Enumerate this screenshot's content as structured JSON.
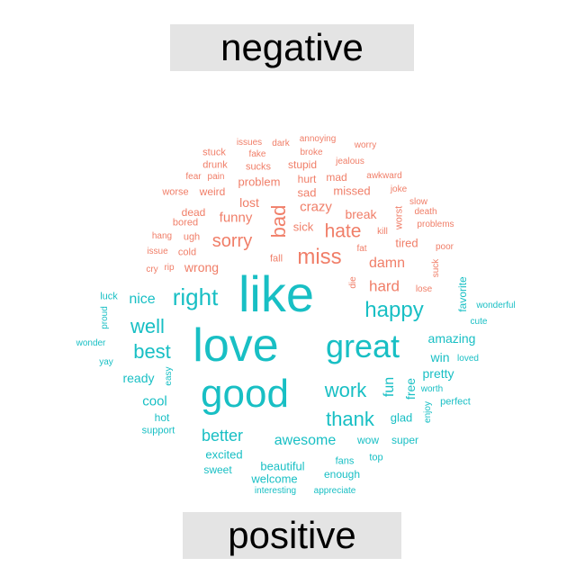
{
  "labels": {
    "negative": "negative",
    "positive": "positive"
  },
  "colors": {
    "negative": "#f07e68",
    "positive": "#18bfc4",
    "banner_bg": "#e4e4e4"
  },
  "words": {
    "negative": [
      "annoying",
      "issues",
      "dark",
      "worry",
      "stuck",
      "fake",
      "broke",
      "drunk",
      "jealous",
      "pain",
      "sucks",
      "stupid",
      "fear",
      "awkward",
      "hurt",
      "mad",
      "problem",
      "joke",
      "worse",
      "weird",
      "sad",
      "missed",
      "slow",
      "lost",
      "death",
      "crazy",
      "dead",
      "bad",
      "worst",
      "break",
      "funny",
      "bored",
      "problems",
      "ugh",
      "hate",
      "kill",
      "hang",
      "sick",
      "sorry",
      "tired",
      "cold",
      "fat",
      "issue",
      "poor",
      "miss",
      "fall",
      "damn",
      "rip",
      "suck",
      "cry",
      "wrong",
      "die",
      "hard",
      "lose"
    ],
    "positive": [
      "favorite",
      "right",
      "nice",
      "like",
      "luck",
      "wonderful",
      "proud",
      "happy",
      "cute",
      "well",
      "love",
      "great",
      "wonder",
      "amazing",
      "best",
      "loved",
      "win",
      "yay",
      "ready",
      "easy",
      "pretty",
      "good",
      "work",
      "free",
      "worth",
      "fun",
      "perfect",
      "cool",
      "thank",
      "enjoy",
      "hot",
      "glad",
      "support",
      "better",
      "awesome",
      "wow",
      "super",
      "excited",
      "top",
      "sweet",
      "beautiful",
      "fans",
      "welcome",
      "enough",
      "interesting",
      "appreciate"
    ]
  }
}
